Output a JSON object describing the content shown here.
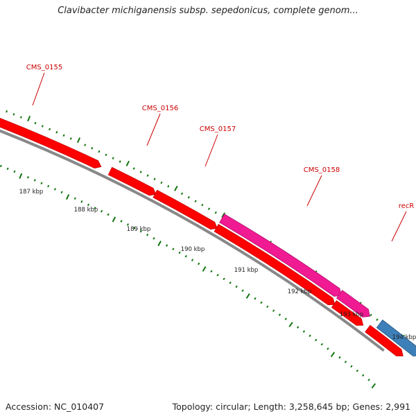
{
  "title": "Clavibacter michiganensis subsp. sepedonicus, complete genom...",
  "accession": "Accession: NC_010407",
  "summary": "Topology: circular; Length: 3,258,645 bp; Genes: 2,991",
  "colors": {
    "cds": "#ff0000",
    "cds_dark": "#c40000",
    "pseudo": "#f01a92",
    "pseudo_dark": "#b0106a",
    "rna": "#3d7fb8",
    "backbone": "#888888",
    "label": "#cc0000",
    "tick": "#117711",
    "kbp_label": "#222222"
  },
  "kbp_labels": [
    "187 kbp",
    "188 kbp",
    "189 kbp",
    "190 kbp",
    "191 kbp",
    "192 kbp",
    "193 kbp",
    "194 kbp"
  ],
  "genes": [
    {
      "label": "CMS_0155",
      "type": "cds"
    },
    {
      "label": "CMS_0156",
      "type": "cds"
    },
    {
      "label": "CMS_0157",
      "type": "cds"
    },
    {
      "label": "CMS_0158",
      "type": "pseudo"
    },
    {
      "label": "recR",
      "type": "cds"
    }
  ]
}
